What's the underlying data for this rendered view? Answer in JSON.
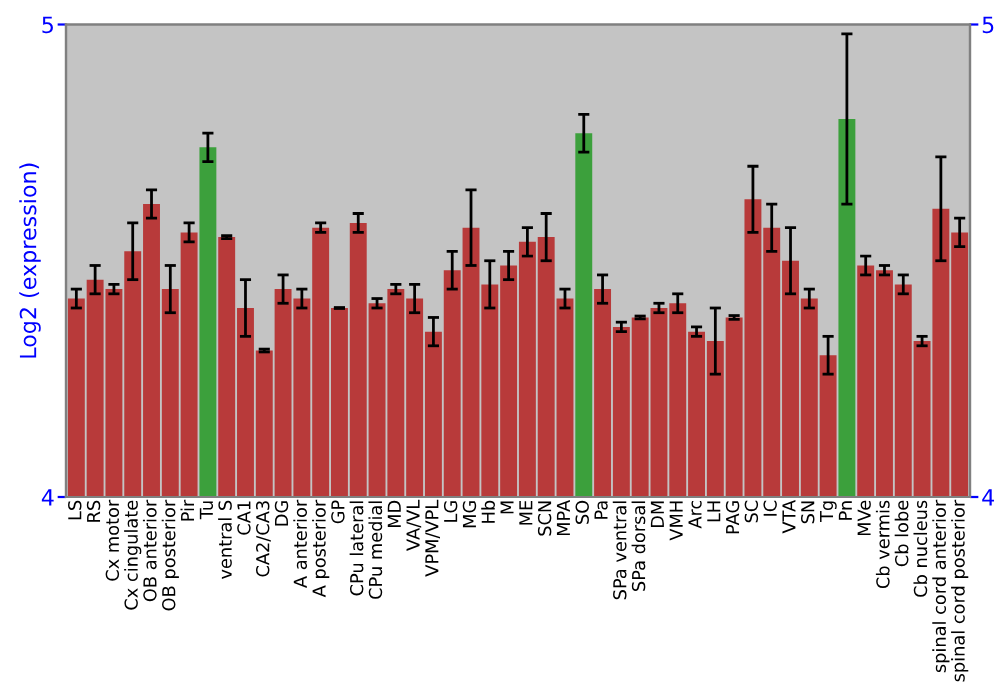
{
  "chart_data": {
    "type": "bar",
    "ylabel": "Log2 (expression)",
    "categories": [
      "LS",
      "RS",
      "Cx motor",
      "Cx cingulate",
      "OB anterior",
      "OB posterior",
      "Pir",
      "Tu",
      "ventral S",
      "CA1",
      "CA2/CA3",
      "DG",
      "A anterior",
      "A posterior",
      "GP",
      "CPu lateral",
      "CPu medial",
      "MD",
      "VA/VL",
      "VPM/VPL",
      "LG",
      "MG",
      "Hb",
      "M",
      "ME",
      "SCN",
      "MPA",
      "SO",
      "Pa",
      "SPa ventral",
      "SPa dorsal",
      "DM",
      "VMH",
      "Arc",
      "LH",
      "PAG",
      "SC",
      "IC",
      "VTA",
      "SN",
      "Tg",
      "Pn",
      "MVe",
      "Cb vermis",
      "Cb lobe",
      "Cb nucleus",
      "spinal cord anterior",
      "spinal cord posterior"
    ],
    "values": [
      4.42,
      4.46,
      4.44,
      4.52,
      4.62,
      4.44,
      4.56,
      4.74,
      4.55,
      4.4,
      4.31,
      4.44,
      4.42,
      4.57,
      4.4,
      4.58,
      4.41,
      4.44,
      4.42,
      4.35,
      4.48,
      4.57,
      4.45,
      4.49,
      4.54,
      4.55,
      4.42,
      4.77,
      4.44,
      4.36,
      4.38,
      4.4,
      4.41,
      4.35,
      4.33,
      4.38,
      4.63,
      4.57,
      4.5,
      4.42,
      4.3,
      4.8,
      4.49,
      4.48,
      4.45,
      4.33,
      4.61,
      4.56
    ],
    "errors": [
      0.02,
      0.03,
      0.01,
      0.06,
      0.03,
      0.05,
      0.02,
      0.03,
      0.003,
      0.06,
      0.003,
      0.03,
      0.02,
      0.01,
      0.001,
      0.02,
      0.01,
      0.01,
      0.03,
      0.03,
      0.04,
      0.08,
      0.05,
      0.03,
      0.03,
      0.05,
      0.02,
      0.04,
      0.03,
      0.01,
      0.003,
      0.01,
      0.02,
      0.01,
      0.07,
      0.004,
      0.07,
      0.05,
      0.07,
      0.02,
      0.04,
      0.18,
      0.02,
      0.01,
      0.02,
      0.01,
      0.11,
      0.03
    ],
    "colors": [
      "#b83a3a",
      "#b83a3a",
      "#b83a3a",
      "#b83a3a",
      "#b83a3a",
      "#b83a3a",
      "#b83a3a",
      "#3ca03c",
      "#b83a3a",
      "#b83a3a",
      "#b83a3a",
      "#b83a3a",
      "#b83a3a",
      "#b83a3a",
      "#b83a3a",
      "#b83a3a",
      "#b83a3a",
      "#b83a3a",
      "#b83a3a",
      "#b83a3a",
      "#b83a3a",
      "#b83a3a",
      "#b83a3a",
      "#b83a3a",
      "#b83a3a",
      "#b83a3a",
      "#b83a3a",
      "#3ca03c",
      "#b83a3a",
      "#b83a3a",
      "#b83a3a",
      "#b83a3a",
      "#b83a3a",
      "#b83a3a",
      "#b83a3a",
      "#b83a3a",
      "#b83a3a",
      "#b83a3a",
      "#b83a3a",
      "#b83a3a",
      "#b83a3a",
      "#3ca03c",
      "#b83a3a",
      "#b83a3a",
      "#b83a3a",
      "#b83a3a",
      "#b83a3a",
      "#b83a3a"
    ],
    "ylim": [
      4,
      5
    ],
    "yticks": [
      4,
      5
    ],
    "y2lim": [
      4,
      5
    ],
    "y2ticks": [
      4,
      5
    ],
    "grid": false
  }
}
